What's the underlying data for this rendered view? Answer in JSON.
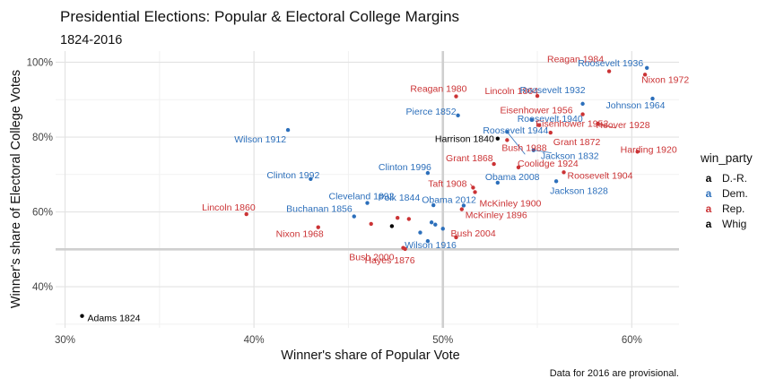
{
  "chart_data": {
    "type": "scatter",
    "title": "Presidential Elections: Popular & Electoral College Margins",
    "subtitle": "1824-2016",
    "xlabel": "Winner's share of Popular Vote",
    "ylabel": "Winner's share of Electoral College Votes",
    "caption": "Data for 2016 are provisional.",
    "xlim": [
      0.295,
      0.625
    ],
    "ylim": [
      0.29,
      1.03
    ],
    "x_ticks": [
      {
        "value": 0.3,
        "label": "30%"
      },
      {
        "value": 0.4,
        "label": "40%"
      },
      {
        "value": 0.5,
        "label": "50%"
      },
      {
        "value": 0.6,
        "label": "60%"
      }
    ],
    "y_ticks": [
      {
        "value": 0.4,
        "label": "40%"
      },
      {
        "value": 0.6,
        "label": "60%"
      },
      {
        "value": 0.8,
        "label": "80%"
      },
      {
        "value": 1.0,
        "label": "100%"
      }
    ],
    "reference_lines": {
      "x": 0.5,
      "y": 0.5
    },
    "legend": {
      "title": "win_party",
      "position": "right",
      "entries": [
        {
          "name": "D.-R.",
          "color": "#000000"
        },
        {
          "name": "Dem.",
          "color": "#2c6fbb"
        },
        {
          "name": "Rep.",
          "color": "#cb3335"
        },
        {
          "name": "Whig",
          "color": "#000000"
        }
      ]
    },
    "colors": {
      "D.-R.": "#000000",
      "Dem.": "#2c6fbb",
      "Rep.": "#cb3335",
      "Whig": "#000000"
    },
    "points": [
      {
        "label": "Adams 1824",
        "party": "D.-R.",
        "x": 0.309,
        "y": 0.322
      },
      {
        "label": "Wilson 1912",
        "party": "Dem.",
        "x": 0.418,
        "y": 0.819
      },
      {
        "label": "Clinton 1992",
        "party": "Dem.",
        "x": 0.43,
        "y": 0.688
      },
      {
        "label": "Lincoln 1860",
        "party": "Rep.",
        "x": 0.396,
        "y": 0.594
      },
      {
        "label": "Nixon 1968",
        "party": "Rep.",
        "x": 0.434,
        "y": 0.559
      },
      {
        "label": "Buchanan 1856",
        "party": "Dem.",
        "x": 0.453,
        "y": 0.588
      },
      {
        "label": "Cleveland 1892",
        "party": "Dem.",
        "x": 0.46,
        "y": 0.624
      },
      {
        "label": "Polk 1844",
        "party": "Dem.",
        "x": 0.495,
        "y": 0.618
      },
      {
        "label": "Bush 2000",
        "party": "Rep.",
        "x": 0.479,
        "y": 0.504
      },
      {
        "label": "Hayes 1876",
        "party": "Rep.",
        "x": 0.48,
        "y": 0.501
      },
      {
        "label": "Wilson 1916",
        "party": "Dem.",
        "x": 0.492,
        "y": 0.522
      },
      {
        "label": "Clinton 1996",
        "party": "Dem.",
        "x": 0.492,
        "y": 0.704
      },
      {
        "label": "Obama 2012",
        "party": "Dem.",
        "x": 0.511,
        "y": 0.617
      },
      {
        "label": "Bush 2004",
        "party": "Rep.",
        "x": 0.507,
        "y": 0.532
      },
      {
        "label": "Taft 1908",
        "party": "Rep.",
        "x": 0.516,
        "y": 0.665
      },
      {
        "label": "McKinley 1900",
        "party": "Rep.",
        "x": 0.517,
        "y": 0.653
      },
      {
        "label": "McKinley 1896",
        "party": "Rep.",
        "x": 0.51,
        "y": 0.607
      },
      {
        "label": "Grant 1868",
        "party": "Rep.",
        "x": 0.527,
        "y": 0.728
      },
      {
        "label": "Obama 2008",
        "party": "Dem.",
        "x": 0.529,
        "y": 0.678
      },
      {
        "label": "Harrison 1840",
        "party": "Whig",
        "x": 0.529,
        "y": 0.796
      },
      {
        "label": "Bush 1988",
        "party": "Rep.",
        "x": 0.534,
        "y": 0.792
      },
      {
        "label": "Reagan 1980",
        "party": "Rep.",
        "x": 0.507,
        "y": 0.909
      },
      {
        "label": "Roosevelt 1940",
        "party": "Dem.",
        "x": 0.547,
        "y": 0.846
      },
      {
        "label": "Roosevelt 1944",
        "party": "Dem.",
        "x": 0.534,
        "y": 0.814
      },
      {
        "label": "Pierce 1852",
        "party": "Dem.",
        "x": 0.508,
        "y": 0.858
      },
      {
        "label": "Lincoln 1864",
        "party": "Rep.",
        "x": 0.55,
        "y": 0.91
      },
      {
        "label": "Eisenhower 1956",
        "party": "Rep.",
        "x": 0.574,
        "y": 0.861
      },
      {
        "label": "Eisenhower 1952",
        "party": "Rep.",
        "x": 0.551,
        "y": 0.832
      },
      {
        "label": "Grant 1872",
        "party": "Rep.",
        "x": 0.557,
        "y": 0.812
      },
      {
        "label": "Coolidge 1924",
        "party": "Rep.",
        "x": 0.54,
        "y": 0.719
      },
      {
        "label": "Jackson 1832",
        "party": "Dem.",
        "x": 0.548,
        "y": 0.765
      },
      {
        "label": "Roosevelt 1904",
        "party": "Rep.",
        "x": 0.564,
        "y": 0.706
      },
      {
        "label": "Jackson 1828",
        "party": "Dem.",
        "x": 0.56,
        "y": 0.682
      },
      {
        "label": "Roosevelt 1932",
        "party": "Dem.",
        "x": 0.574,
        "y": 0.889
      },
      {
        "label": "Reagan 1984",
        "party": "Rep.",
        "x": 0.588,
        "y": 0.976
      },
      {
        "label": "Roosevelt 1936",
        "party": "Dem.",
        "x": 0.608,
        "y": 0.985
      },
      {
        "label": "Nixon 1972",
        "party": "Rep.",
        "x": 0.607,
        "y": 0.967
      },
      {
        "label": "Johnson 1964",
        "party": "Dem.",
        "x": 0.611,
        "y": 0.903
      },
      {
        "label": "Hoover 1928",
        "party": "Rep.",
        "x": 0.582,
        "y": 0.836
      },
      {
        "label": "Harding 1920",
        "party": "Rep.",
        "x": 0.603,
        "y": 0.761
      },
      {
        "label": "",
        "party": "Whig",
        "x": 0.473,
        "y": 0.562
      },
      {
        "label": "",
        "party": "Rep.",
        "x": 0.462,
        "y": 0.568
      },
      {
        "label": "",
        "party": "Rep.",
        "x": 0.476,
        "y": 0.584
      },
      {
        "label": "",
        "party": "Rep.",
        "x": 0.482,
        "y": 0.581
      },
      {
        "label": "",
        "party": "Dem.",
        "x": 0.488,
        "y": 0.545
      },
      {
        "label": "",
        "party": "Dem.",
        "x": 0.494,
        "y": 0.572
      },
      {
        "label": "",
        "party": "Dem.",
        "x": 0.496,
        "y": 0.566
      },
      {
        "label": "",
        "party": "Dem.",
        "x": 0.5,
        "y": 0.555
      }
    ]
  }
}
